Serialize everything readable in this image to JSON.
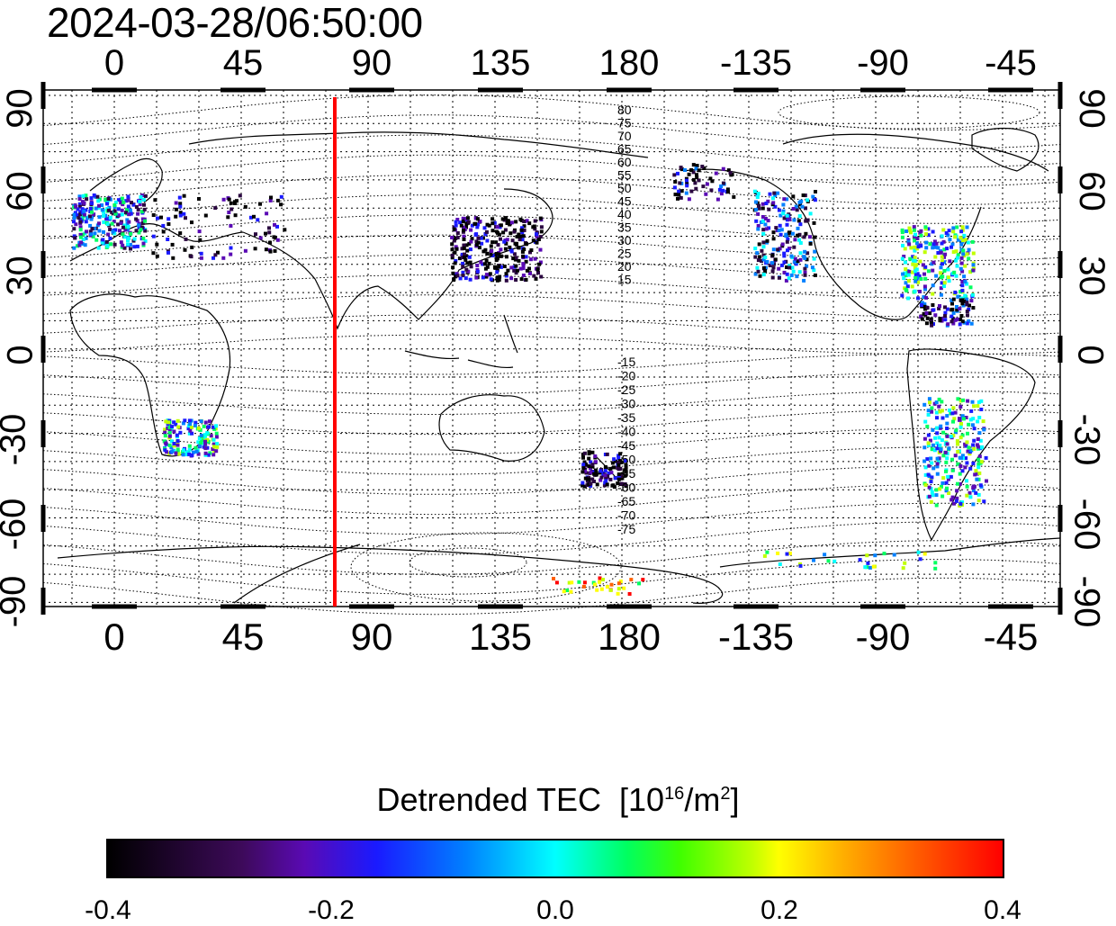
{
  "timestamp": "2024-03-28/06:50:00",
  "axes": {
    "top_ticks": [
      "0",
      "45",
      "90",
      "135",
      "180",
      "-135",
      "-90",
      "-45"
    ],
    "bottom_ticks": [
      "0",
      "45",
      "90",
      "135",
      "180",
      "-135",
      "-90",
      "-45"
    ],
    "left_ticks": [
      "90",
      "60",
      "30",
      "0",
      "-30",
      "-60",
      "-90"
    ],
    "right_ticks": [
      "90",
      "60",
      "30",
      "0",
      "-30",
      "-60",
      "-90"
    ]
  },
  "contour_labels_north": [
    "80",
    "75",
    "70",
    "65",
    "60",
    "55",
    "50",
    "45",
    "40",
    "35",
    "30",
    "25",
    "20",
    "15"
  ],
  "contour_labels_south": [
    "-15",
    "-20",
    "-25",
    "-30",
    "-35",
    "-40",
    "-45",
    "-50",
    "-55",
    "-60",
    "-65",
    "-70",
    "-75"
  ],
  "colorbar": {
    "title": "Detrended TEC",
    "unit_base": "[10",
    "unit_exp": "16",
    "unit_mid": "/m",
    "unit_exp2": "2",
    "unit_close": "]",
    "ticks": [
      "-0.4",
      "-0.2",
      "0.0",
      "0.2",
      "0.4"
    ],
    "range": [
      -0.4,
      0.4
    ]
  },
  "meridian_line_longitude": 78,
  "colors": {
    "meridian": "#ff0000",
    "grid": "#000000"
  }
}
